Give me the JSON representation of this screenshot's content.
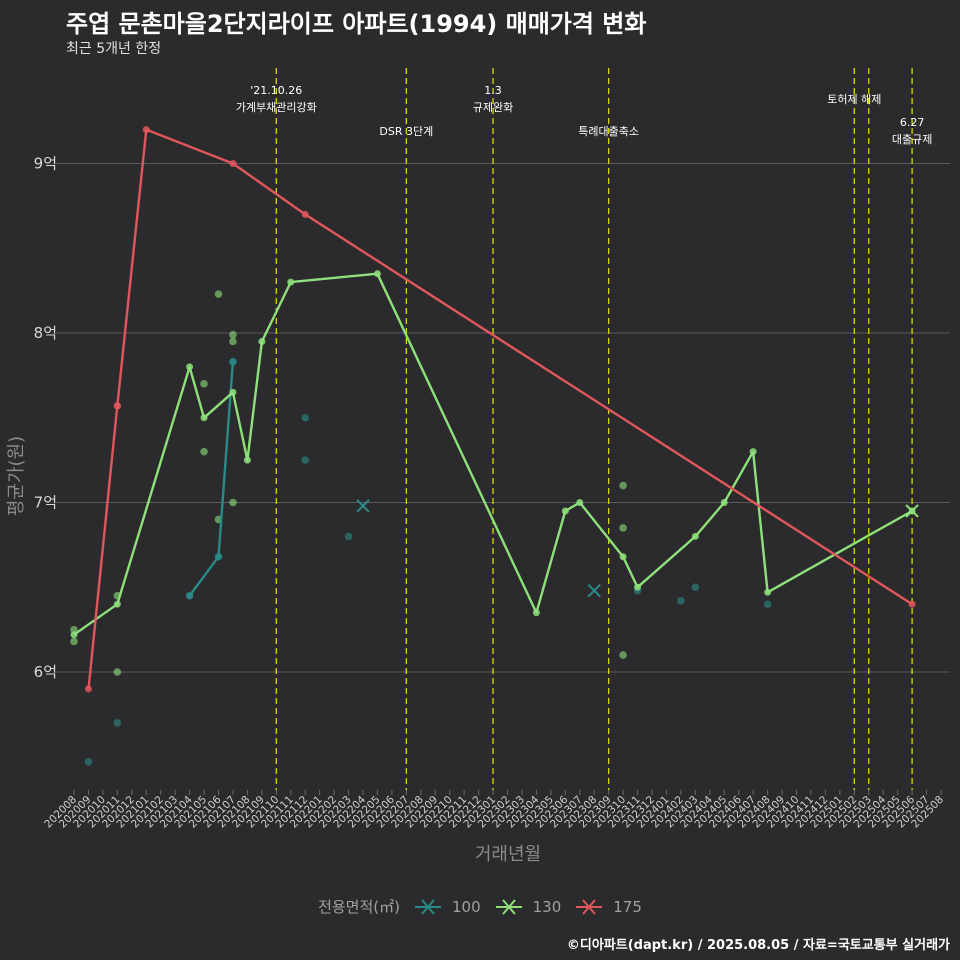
{
  "title": "주엽 문촌마을2단지라이프 아파트(1994) 매매가격 변화",
  "subtitle": "최근 5개년 한정",
  "footer": "©디아파트(dapt.kr) / 2025.08.05 / 자료=국토교통부 실거래가",
  "chart_data": {
    "type": "line",
    "xlabel": "거래년월",
    "ylabel": "평균가(원)",
    "x_categories": [
      "202008",
      "202009",
      "202010",
      "202011",
      "202012",
      "202101",
      "202102",
      "202103",
      "202104",
      "202105",
      "202106",
      "202107",
      "202108",
      "202109",
      "202110",
      "202111",
      "202112",
      "202201",
      "202202",
      "202203",
      "202204",
      "202205",
      "202206",
      "202207",
      "202208",
      "202209",
      "202210",
      "202211",
      "202212",
      "202301",
      "202302",
      "202303",
      "202304",
      "202305",
      "202306",
      "202307",
      "202308",
      "202309",
      "202310",
      "202311",
      "202312",
      "202401",
      "202402",
      "202403",
      "202404",
      "202405",
      "202406",
      "202407",
      "202408",
      "202409",
      "202410",
      "202411",
      "202412",
      "202501",
      "202502",
      "202503",
      "202504",
      "202505",
      "202506",
      "202507",
      "202508"
    ],
    "y_ticks": [
      {
        "value": 6,
        "label": "6억"
      },
      {
        "value": 7,
        "label": "7억"
      },
      {
        "value": 8,
        "label": "8억"
      },
      {
        "value": 9,
        "label": "9억"
      }
    ],
    "ylim": [
      5.3,
      9.55
    ],
    "legend_title": "전용면적(㎡)",
    "series": [
      {
        "name": "100",
        "color": "#2a8a87",
        "line": [
          [
            "202104",
            6.45
          ],
          [
            "202106",
            6.68
          ],
          [
            "202107",
            7.83
          ]
        ],
        "points": [
          [
            "202009",
            5.47
          ],
          [
            "202011",
            5.7
          ],
          [
            "202104",
            6.45
          ],
          [
            "202106",
            6.68
          ],
          [
            "202107",
            7.83
          ],
          [
            "202112",
            7.5
          ],
          [
            "202112",
            7.25
          ],
          [
            "202203",
            6.8
          ],
          [
            "202311",
            6.48
          ],
          [
            "202402",
            6.42
          ],
          [
            "202403",
            6.5
          ],
          [
            "202408",
            6.4
          ]
        ]
      },
      {
        "name": "130",
        "color": "#8ee07a",
        "line": [
          [
            "202008",
            6.22
          ],
          [
            "202011",
            6.4
          ],
          [
            "202104",
            7.8
          ],
          [
            "202105",
            7.5
          ],
          [
            "202107",
            7.65
          ],
          [
            "202108",
            7.25
          ],
          [
            "202109",
            7.95
          ],
          [
            "202111",
            8.3
          ],
          [
            "202205",
            8.35
          ],
          [
            "202304",
            6.35
          ],
          [
            "202306",
            6.95
          ],
          [
            "202307",
            7.0
          ],
          [
            "202310",
            6.68
          ],
          [
            "202311",
            6.5
          ],
          [
            "202403",
            6.8
          ],
          [
            "202405",
            7.0
          ],
          [
            "202407",
            7.3
          ],
          [
            "202408",
            6.47
          ],
          [
            "202506",
            6.95
          ]
        ],
        "points": [
          [
            "202008",
            6.25
          ],
          [
            "202008",
            6.18
          ],
          [
            "202011",
            6.45
          ],
          [
            "202011",
            6.0
          ],
          [
            "202105",
            7.7
          ],
          [
            "202105",
            7.3
          ],
          [
            "202106",
            8.23
          ],
          [
            "202106",
            6.9
          ],
          [
            "202107",
            7.99
          ],
          [
            "202107",
            7.95
          ],
          [
            "202107",
            7.0
          ],
          [
            "202310",
            7.1
          ],
          [
            "202310",
            6.85
          ],
          [
            "202310",
            6.1
          ]
        ]
      },
      {
        "name": "175",
        "color": "#e0575b",
        "line": [
          [
            "202009",
            5.9
          ],
          [
            "202011",
            7.57
          ],
          [
            "202101",
            9.2
          ],
          [
            "202107",
            9.0
          ],
          [
            "202112",
            8.7
          ],
          [
            "202506",
            6.4
          ]
        ],
        "points": [
          [
            "202011",
            7.57
          ]
        ]
      }
    ],
    "x_markers": [
      {
        "label": "202204",
        "series": "100",
        "value": 6.98
      },
      {
        "label": "202308",
        "series": "100",
        "value": 6.48
      },
      {
        "label": "202506",
        "series": "130",
        "value": 6.95
      }
    ],
    "events": [
      {
        "x": "202110",
        "line1": "'21.10.26",
        "line2": "가계부채관리강화",
        "tier": 1
      },
      {
        "x": "202207",
        "line1": "DSR 3단계",
        "line2": "",
        "tier": 2
      },
      {
        "x": "202301",
        "line1": "1.3",
        "line2": "규제완화",
        "tier": 1
      },
      {
        "x": "202309",
        "line1": "특례대출축소",
        "line2": "",
        "tier": 2
      },
      {
        "x": "202502",
        "line1": "토허제 해제",
        "line2": "",
        "tier": 3
      },
      {
        "x": "202503",
        "line1": "",
        "line2": "",
        "tier": 3
      },
      {
        "x": "202506",
        "line1": "6.27",
        "line2": "대출규제",
        "tier": 4
      }
    ]
  }
}
